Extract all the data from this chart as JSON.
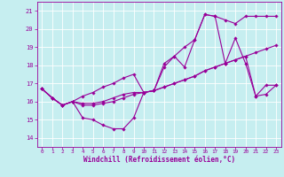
{
  "xlabel": "Windchill (Refroidissement éolien,°C)",
  "xlim": [
    -0.5,
    23.5
  ],
  "ylim": [
    13.5,
    21.5
  ],
  "yticks": [
    14,
    15,
    16,
    17,
    18,
    19,
    20,
    21
  ],
  "xticks": [
    0,
    1,
    2,
    3,
    4,
    5,
    6,
    7,
    8,
    9,
    10,
    11,
    12,
    13,
    14,
    15,
    16,
    17,
    18,
    19,
    20,
    21,
    22,
    23
  ],
  "bg_color": "#c6eef0",
  "line_color": "#990099",
  "grid_color": "#b0d8dc",
  "lines": [
    [
      16.7,
      16.2,
      15.8,
      16.0,
      15.1,
      15.0,
      14.7,
      14.5,
      14.5,
      15.1,
      16.5,
      16.6,
      17.9,
      18.5,
      17.9,
      19.4,
      20.8,
      20.7,
      18.1,
      19.5,
      18.1,
      16.3,
      16.9,
      16.9
    ],
    [
      16.7,
      16.2,
      15.8,
      16.0,
      15.8,
      15.8,
      15.9,
      16.0,
      16.2,
      16.4,
      16.5,
      16.6,
      16.8,
      17.0,
      17.2,
      17.4,
      17.7,
      17.9,
      18.1,
      18.3,
      18.5,
      18.7,
      18.9,
      19.1
    ],
    [
      16.7,
      16.2,
      15.8,
      16.0,
      16.3,
      16.5,
      16.8,
      17.0,
      17.3,
      17.5,
      16.5,
      16.6,
      18.1,
      18.5,
      19.0,
      19.4,
      20.8,
      20.7,
      20.5,
      20.3,
      20.7,
      20.7,
      20.7,
      20.7
    ],
    [
      16.7,
      16.2,
      15.8,
      16.0,
      15.9,
      15.9,
      16.0,
      16.2,
      16.4,
      16.5,
      16.5,
      16.6,
      16.8,
      17.0,
      17.2,
      17.4,
      17.7,
      17.9,
      18.1,
      18.3,
      18.5,
      16.3,
      16.4,
      16.9
    ]
  ]
}
